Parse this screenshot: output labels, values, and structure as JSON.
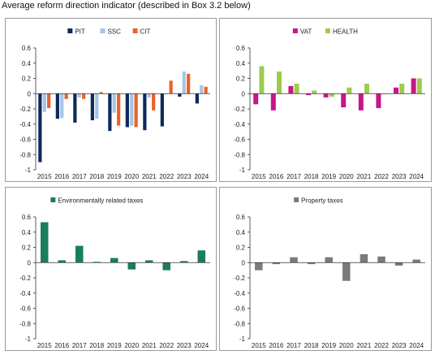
{
  "title": "Average reform direction indicator (described in Box 3.2 below)",
  "chart_data": [
    {
      "type": "bar",
      "categories": [
        "2015",
        "2016",
        "2017",
        "2018",
        "2019",
        "2020",
        "2021",
        "2022",
        "2023",
        "2024"
      ],
      "ylim": [
        -1,
        0.6
      ],
      "yticks": [
        "0.6",
        "0.4",
        "0.2",
        "0",
        "-0.2",
        "-0.4",
        "-0.6",
        "-0.8",
        "-1"
      ],
      "grid": false,
      "legend_position": "top-center",
      "series": [
        {
          "name": "PIT",
          "color": "#0d2a5c",
          "values": [
            -0.9,
            -0.33,
            -0.38,
            -0.35,
            -0.49,
            -0.44,
            -0.48,
            -0.43,
            -0.04,
            -0.13
          ]
        },
        {
          "name": "SSC",
          "color": "#a7c4e6",
          "values": [
            -0.24,
            -0.32,
            -0.05,
            -0.33,
            -0.25,
            -0.42,
            -0.05,
            0.0,
            0.29,
            0.11
          ]
        },
        {
          "name": "CIT",
          "color": "#e8632a",
          "values": [
            -0.19,
            -0.07,
            -0.07,
            0.02,
            -0.42,
            -0.44,
            -0.22,
            0.17,
            0.26,
            0.09
          ]
        }
      ]
    },
    {
      "type": "bar",
      "categories": [
        "2015",
        "2016",
        "2017",
        "2018",
        "2019",
        "2020",
        "2021",
        "2022",
        "2023",
        "2024"
      ],
      "ylim": [
        -1,
        0.6
      ],
      "yticks": [
        "0.6",
        "0.4",
        "0.2",
        "0",
        "-0.2",
        "-0.4",
        "-0.6",
        "-0.8",
        "-1"
      ],
      "grid": false,
      "legend_position": "top-center",
      "series": [
        {
          "name": "VAT",
          "color": "#c8168a",
          "values": [
            -0.14,
            -0.22,
            0.1,
            -0.02,
            -0.05,
            -0.18,
            -0.22,
            -0.19,
            0.08,
            0.2
          ]
        },
        {
          "name": "HEALTH",
          "color": "#9fcb4d",
          "values": [
            0.36,
            0.29,
            0.13,
            0.04,
            -0.04,
            0.08,
            0.13,
            0.0,
            0.13,
            0.2
          ]
        }
      ]
    },
    {
      "type": "bar",
      "categories": [
        "2015",
        "2016",
        "2017",
        "2018",
        "2019",
        "2020",
        "2021",
        "2022",
        "2023",
        "2024"
      ],
      "ylim": [
        -1,
        0.6
      ],
      "yticks": [
        "0.6",
        "0.4",
        "0.2",
        "0",
        "-0.2",
        "-0.4",
        "-0.6",
        "-0.8",
        "-1"
      ],
      "grid": false,
      "legend_position": "top-center",
      "series": [
        {
          "name": "Environmentally related taxes",
          "color": "#1a7d5e",
          "values": [
            0.53,
            0.03,
            0.22,
            0.01,
            0.06,
            -0.09,
            0.03,
            -0.1,
            0.02,
            0.16
          ]
        }
      ]
    },
    {
      "type": "bar",
      "categories": [
        "2015",
        "2016",
        "2017",
        "2018",
        "2019",
        "2020",
        "2021",
        "2022",
        "2023",
        "2024"
      ],
      "ylim": [
        -1,
        0.6
      ],
      "yticks": [
        "0.6",
        "0.4",
        "0.2",
        "0",
        "-0.2",
        "-0.4",
        "-0.6",
        "-0.8",
        "-1"
      ],
      "grid": false,
      "legend_position": "top-center",
      "series": [
        {
          "name": "Property taxes",
          "color": "#7a7a7a",
          "values": [
            -0.1,
            -0.02,
            0.07,
            -0.02,
            0.07,
            -0.24,
            0.11,
            0.08,
            -0.04,
            0.04
          ]
        }
      ]
    }
  ]
}
